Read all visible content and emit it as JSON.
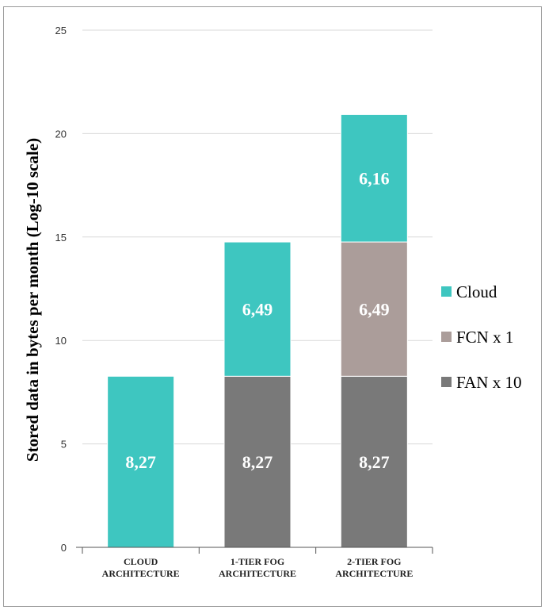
{
  "chart_data": {
    "type": "bar",
    "stacked": true,
    "title": "",
    "xlabel": "",
    "ylabel": "Stored data in bytes per month (Log-10 scale)",
    "ylim": [
      0,
      25
    ],
    "yticks": [
      0,
      5,
      10,
      15,
      20,
      25
    ],
    "grid": true,
    "legend_position": "right",
    "categories": [
      [
        "CLOUD",
        "ARCHITECTURE"
      ],
      [
        "1-TIER FOG",
        "ARCHITECTURE"
      ],
      [
        "2-TIER FOG",
        "ARCHITECTURE"
      ]
    ],
    "series": [
      {
        "name": "FAN x 10",
        "color": "#797979",
        "values": [
          null,
          8.27,
          8.27
        ],
        "labels": [
          "",
          "8,27",
          "8,27"
        ]
      },
      {
        "name": "FCN x 1",
        "color": "#ab9d9a",
        "values": [
          null,
          null,
          6.49
        ],
        "labels": [
          "",
          "",
          "6,49"
        ]
      },
      {
        "name": "Cloud",
        "color": "#3ec6c0",
        "values": [
          8.27,
          6.49,
          6.16
        ],
        "labels": [
          "8,27",
          "6,49",
          "6,16"
        ]
      }
    ],
    "legend_order": [
      "Cloud",
      "FCN x 1",
      "FAN x 10"
    ]
  }
}
